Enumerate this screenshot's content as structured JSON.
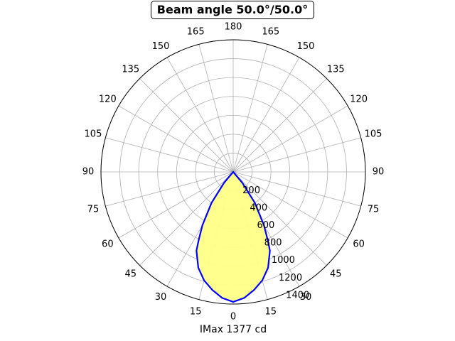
{
  "chart_data": {
    "type": "polar",
    "title": "Beam angle 50.0°/50.0°",
    "xlabel": "IMax 1377 cd",
    "angle_tick_labels": [
      "0",
      "15",
      "30",
      "45",
      "60",
      "75",
      "90",
      "105",
      "120",
      "135",
      "150",
      "165",
      "180",
      "165",
      "150",
      "135",
      "120",
      "105",
      "90",
      "75",
      "60",
      "45",
      "30",
      "15"
    ],
    "radial_tick_labels": [
      "200",
      "400",
      "600",
      "800",
      "1000",
      "1200",
      "1400"
    ],
    "radial_ticks": [
      200,
      400,
      600,
      800,
      1000,
      1200,
      1400
    ],
    "rlim": [
      0,
      1400
    ],
    "grid": true,
    "series": [
      {
        "color": "#0000ff",
        "fill": "#ffff88",
        "points": [
          {
            "angle": -45,
            "value": 0
          },
          {
            "angle": -40,
            "value": 150
          },
          {
            "angle": -35,
            "value": 400
          },
          {
            "angle": -30,
            "value": 650
          },
          {
            "angle": -27,
            "value": 800
          },
          {
            "angle": -25,
            "value": 920
          },
          {
            "angle": -20,
            "value": 1080
          },
          {
            "angle": -15,
            "value": 1190
          },
          {
            "angle": -10,
            "value": 1270
          },
          {
            "angle": -5,
            "value": 1340
          },
          {
            "angle": 0,
            "value": 1377
          },
          {
            "angle": 5,
            "value": 1340
          },
          {
            "angle": 10,
            "value": 1270
          },
          {
            "angle": 15,
            "value": 1190
          },
          {
            "angle": 20,
            "value": 1080
          },
          {
            "angle": 25,
            "value": 920
          },
          {
            "angle": 27,
            "value": 800
          },
          {
            "angle": 30,
            "value": 650
          },
          {
            "angle": 35,
            "value": 400
          },
          {
            "angle": 40,
            "value": 150
          },
          {
            "angle": 45,
            "value": 0
          }
        ]
      }
    ],
    "colors": {
      "grid": "#b0b0b0",
      "curve": "#0000ff",
      "fill": "#ffff88",
      "frame": "#000000"
    }
  }
}
